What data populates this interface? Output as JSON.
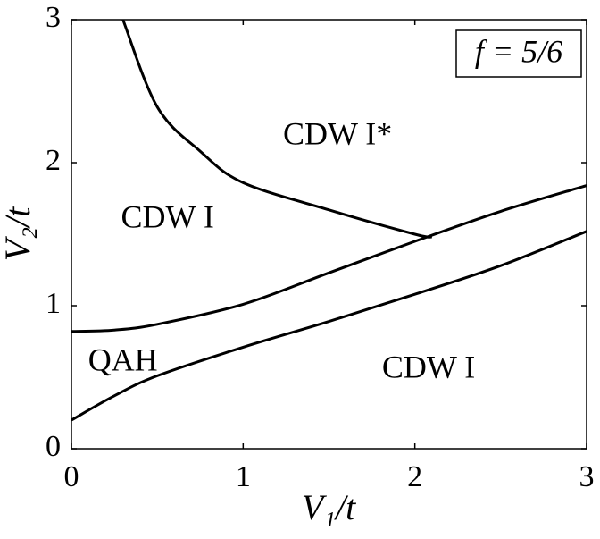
{
  "chart_data": {
    "type": "line",
    "xlabel": "V₁/t",
    "ylabel": "V₂/t",
    "xlim": [
      0,
      3
    ],
    "ylim": [
      0,
      3
    ],
    "xticks": [
      0,
      1,
      2,
      3
    ],
    "yticks": [
      0,
      1,
      2,
      3
    ],
    "grid": false,
    "legend_text": "f = 5/6",
    "annotations": [
      {
        "text": "CDW I*",
        "x": 1.55,
        "y": 2.18
      },
      {
        "text": "CDW I",
        "x": 0.56,
        "y": 1.6
      },
      {
        "text": "QAH",
        "x": 0.3,
        "y": 0.6
      },
      {
        "text": "CDW I",
        "x": 2.08,
        "y": 0.55
      }
    ],
    "series": [
      {
        "color": "#000000",
        "x": [
          0.3,
          0.5,
          0.75,
          1,
          1.5,
          2,
          2.1
        ],
        "values": [
          3,
          2.39,
          2.08,
          1.86,
          1.67,
          1.5,
          1.48
        ]
      },
      {
        "color": "#000000",
        "x": [
          0,
          0.25,
          0.5,
          1,
          1.5,
          2,
          2.5,
          3
        ],
        "values": [
          0.82,
          0.83,
          0.87,
          1.01,
          1.23,
          1.45,
          1.66,
          1.84
        ]
      },
      {
        "color": "#000000",
        "x": [
          0,
          0.25,
          0.5,
          1,
          1.5,
          2,
          2.5,
          3
        ],
        "values": [
          0.2,
          0.37,
          0.51,
          0.71,
          0.89,
          1.08,
          1.28,
          1.52
        ]
      }
    ]
  }
}
